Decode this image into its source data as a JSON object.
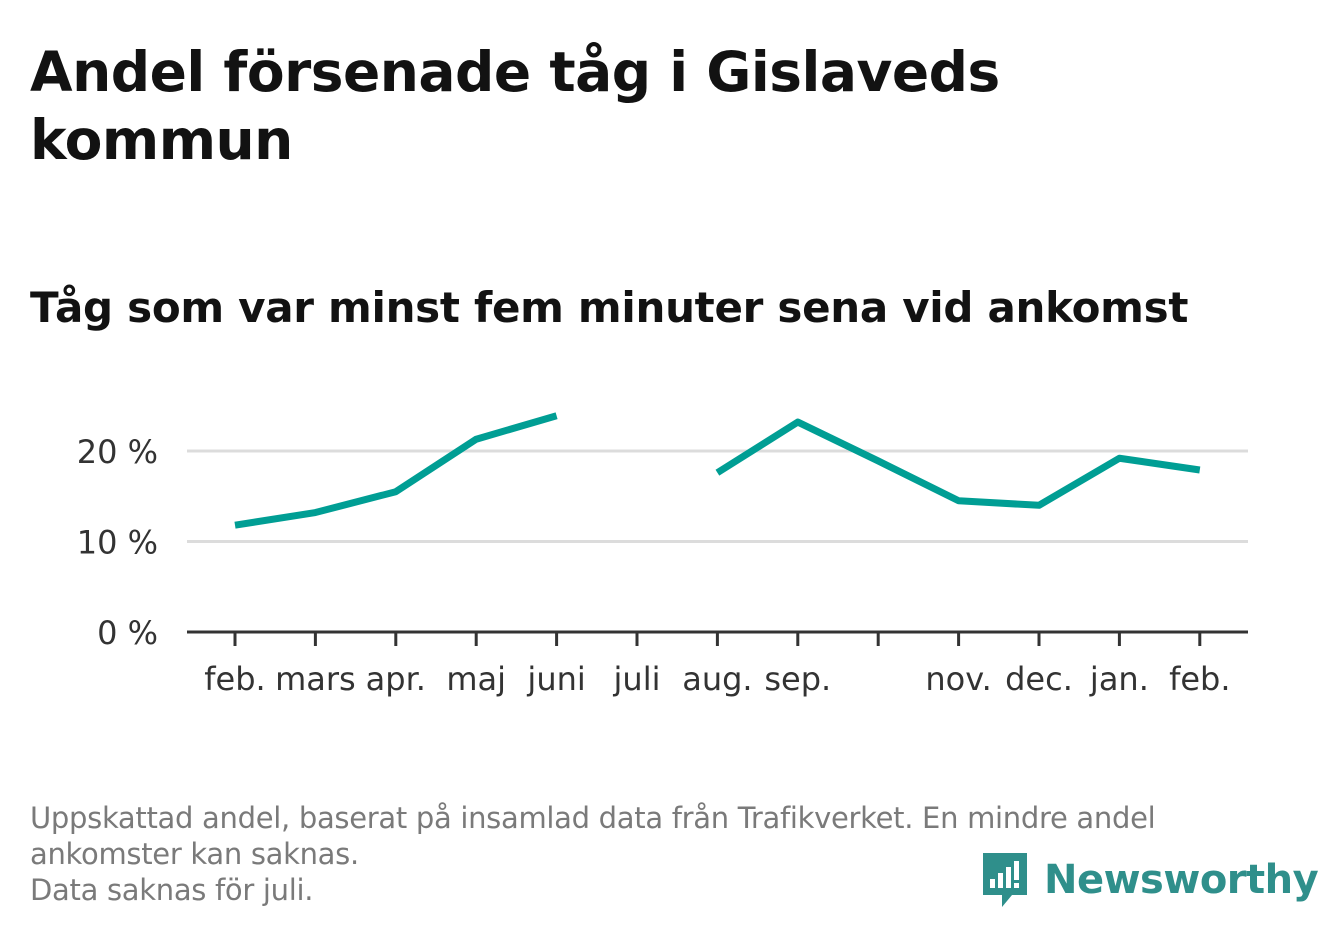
{
  "title": "Andel försenade tåg i Gislaveds kommun",
  "subtitle": "Tåg som var minst fem minuter sena vid ankomst",
  "footnote": [
    "Uppskattad andel, baserat på insamlad data från Trafikverket. En mindre andel",
    "ankomster kan saknas.",
    "Data saknas för juli."
  ],
  "logo": {
    "text": "Newsworthy",
    "icon": "newsworthy-logo-icon",
    "color": "#2f8f8b"
  },
  "chart_data": {
    "type": "line",
    "categories": [
      "feb.",
      "mars",
      "apr.",
      "maj",
      "juni",
      "juli",
      "aug.",
      "sep.",
      "",
      "nov.",
      "dec.",
      "jan.",
      "feb."
    ],
    "series": [
      {
        "values": [
          11.8,
          13.2,
          15.5,
          21.3,
          23.9,
          null,
          17.6,
          23.2,
          18.9,
          14.5,
          14.0,
          19.2,
          17.9
        ],
        "color": "#009e94"
      }
    ],
    "yticks": [
      0,
      10,
      20
    ],
    "ytick_labels": [
      "0 %",
      "10 %",
      "20 %"
    ],
    "ylim": [
      0,
      27
    ],
    "grid": true,
    "legend": "none"
  }
}
